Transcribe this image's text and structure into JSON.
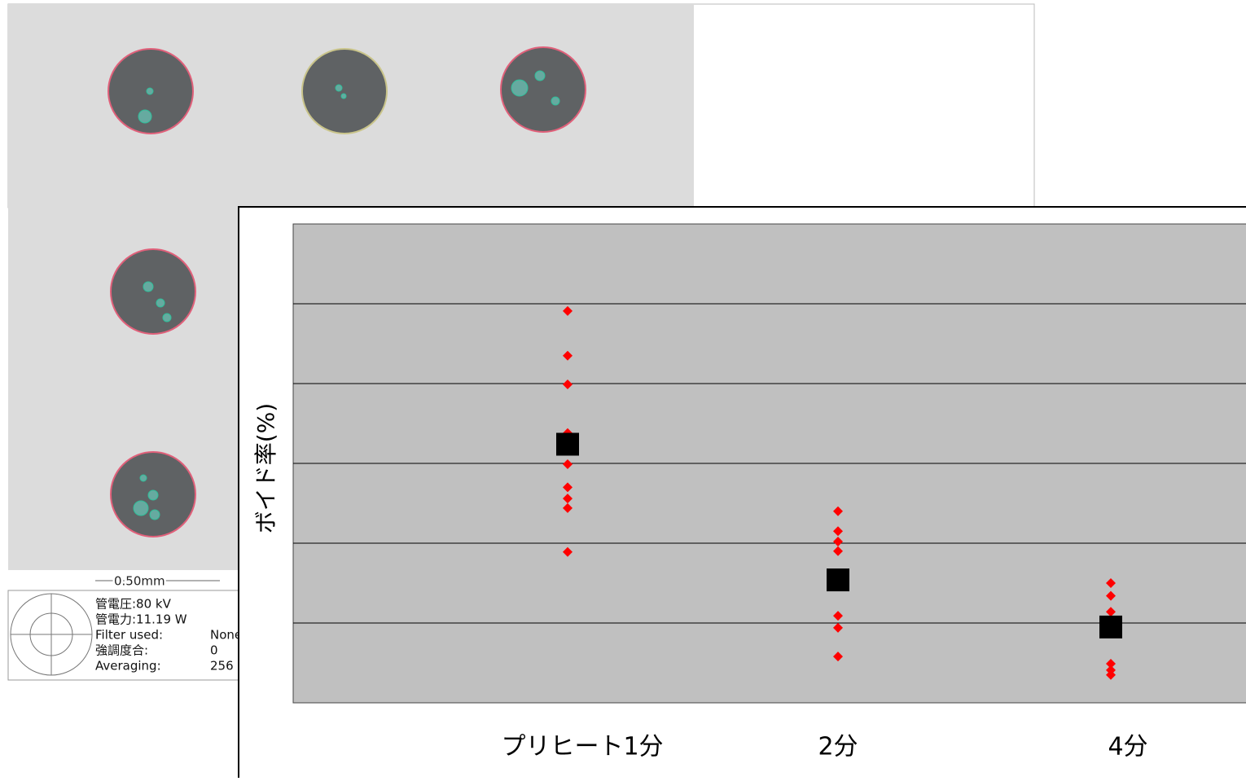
{
  "screenshot": {
    "scale": "0.50mm",
    "info": [
      [
        "管電圧:80 kV",
        ""
      ],
      [
        "管電力:11.19 W",
        ""
      ],
      [
        "Filter used:",
        "None"
      ],
      [
        "強調度合:",
        "0"
      ],
      [
        "Averaging:",
        "256"
      ]
    ]
  },
  "chart_data": {
    "type": "scatter",
    "y_label": "ボイド率(%)",
    "categories": [
      "プリヒート1分",
      "2分",
      "4分"
    ],
    "series": [
      {
        "color": "#ff0000",
        "marker": "diamond",
        "values": [
          [
            4.91,
            4.35,
            3.99,
            3.38,
            2.99,
            2.7,
            2.56,
            2.44,
            1.89
          ],
          [
            2.4,
            2.15,
            2.02,
            1.9,
            1.09,
            0.94,
            0.58
          ],
          [
            1.5,
            1.34,
            1.14,
            0.49,
            0.41,
            0.35
          ]
        ]
      },
      {
        "color": "#000000",
        "marker": "square",
        "values": [
          3.24,
          1.54,
          0.95
        ]
      }
    ],
    "ylim": [
      0,
      6
    ],
    "yticks": [
      1,
      2,
      3,
      4,
      5
    ],
    "grid": true,
    "background": "#c0c0c0"
  }
}
